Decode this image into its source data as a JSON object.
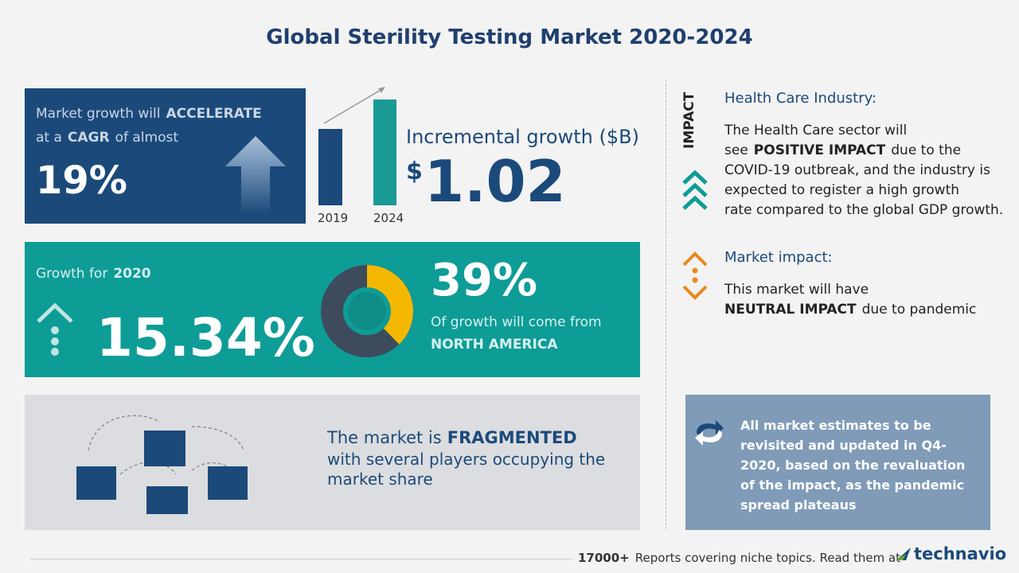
{
  "header": {
    "title": "Global Sterility Testing Market 2020-2024"
  },
  "cagr_panel": {
    "line1": [
      "Market growth will",
      "ACCELERATE"
    ],
    "line2": [
      "at a",
      "CAGR",
      "of almost"
    ],
    "value": "19%"
  },
  "incremental": {
    "years": [
      "2019",
      "2024"
    ],
    "label": "Incremental growth ($B)",
    "currency": "$",
    "value": "1.02"
  },
  "growth_panel": {
    "label": [
      "Growth for",
      "2020"
    ],
    "value": "15.34%",
    "share": "39%",
    "share_text": "Of growth will come from",
    "region": "NORTH AMERICA"
  },
  "vendor_panel": {
    "line1": [
      "The market is",
      "FRAGMENTED"
    ],
    "line2": "with several players occupying the",
    "line3": "market share"
  },
  "impact": {
    "heading": "IMPACT",
    "industry_title": "Health Care Industry:",
    "industry_lines": [
      [
        "The Health Care sector will"
      ],
      [
        "see",
        "POSITIVE IMPACT",
        "due to the"
      ],
      [
        "COVID-19 outbreak, and the industry is"
      ],
      [
        "expected to register a high growth"
      ],
      [
        "rate compared to the global GDP growth."
      ]
    ],
    "market_title": "Market impact:",
    "market_lines": [
      [
        "This market will have"
      ],
      [
        "NEUTRAL IMPACT",
        "due to pandemic"
      ]
    ]
  },
  "note": {
    "lines": [
      "All market estimates to be",
      "revisited and updated in Q4-",
      "2020, based on the revaluation",
      "of the impact, as the pandemic",
      "spread plateaus"
    ]
  },
  "footer": {
    "count": "17000+",
    "text": "Reports covering niche topics. Read them at",
    "brand": "technavio"
  }
}
